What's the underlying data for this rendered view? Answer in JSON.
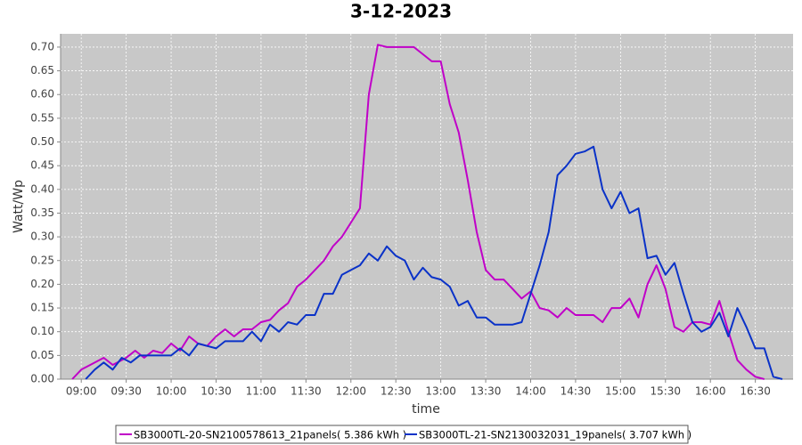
{
  "chart_data": {
    "type": "line",
    "title": "3-12-2023",
    "x_label": "time",
    "y_label": "Watt/Wp",
    "xlim": [
      8.77,
      16.92
    ],
    "ylim": [
      0,
      0.728
    ],
    "grid": true,
    "legend": "bottom",
    "xticks": [
      {
        "value": 9,
        "label": "09:00"
      },
      {
        "value": 9.5,
        "label": "09:30"
      },
      {
        "value": 10,
        "label": "10:00"
      },
      {
        "value": 10.5,
        "label": "10:30"
      },
      {
        "value": 11,
        "label": "11:00"
      },
      {
        "value": 11.5,
        "label": "11:30"
      },
      {
        "value": 12,
        "label": "12:00"
      },
      {
        "value": 12.5,
        "label": "12:30"
      },
      {
        "value": 13,
        "label": "13:00"
      },
      {
        "value": 13.5,
        "label": "13:30"
      },
      {
        "value": 14,
        "label": "14:00"
      },
      {
        "value": 14.5,
        "label": "14:30"
      },
      {
        "value": 15,
        "label": "15:00"
      },
      {
        "value": 15.5,
        "label": "15:30"
      },
      {
        "value": 16,
        "label": "16:00"
      },
      {
        "value": 16.5,
        "label": "16:30"
      }
    ],
    "yticks": [
      {
        "value": 0,
        "label": "0.00"
      },
      {
        "value": 0.05,
        "label": "0.05"
      },
      {
        "value": 0.1,
        "label": "0.10"
      },
      {
        "value": 0.15,
        "label": "0.15"
      },
      {
        "value": 0.2,
        "label": "0.20"
      },
      {
        "value": 0.25,
        "label": "0.25"
      },
      {
        "value": 0.3,
        "label": "0.30"
      },
      {
        "value": 0.35,
        "label": "0.35"
      },
      {
        "value": 0.4,
        "label": "0.40"
      },
      {
        "value": 0.45,
        "label": "0.45"
      },
      {
        "value": 0.5,
        "label": "0.50"
      },
      {
        "value": 0.55,
        "label": "0.55"
      },
      {
        "value": 0.6,
        "label": "0.60"
      },
      {
        "value": 0.65,
        "label": "0.65"
      },
      {
        "value": 0.7,
        "label": "0.70"
      }
    ],
    "series": [
      {
        "name": "SB3000TL-20-SN2100578613_21panels( 5.386 kWh )",
        "color": "#c000c8",
        "x": [
          8.9,
          9.0,
          9.1,
          9.25,
          9.35,
          9.5,
          9.6,
          9.7,
          9.8,
          9.9,
          10.0,
          10.1,
          10.2,
          10.3,
          10.4,
          10.5,
          10.6,
          10.7,
          10.8,
          10.9,
          11.0,
          11.1,
          11.2,
          11.3,
          11.4,
          11.5,
          11.6,
          11.7,
          11.8,
          11.9,
          12.0,
          12.1,
          12.2,
          12.3,
          12.4,
          12.5,
          12.6,
          12.7,
          12.8,
          12.9,
          13.0,
          13.1,
          13.2,
          13.3,
          13.4,
          13.5,
          13.6,
          13.7,
          13.8,
          13.9,
          14.0,
          14.1,
          14.2,
          14.3,
          14.4,
          14.5,
          14.6,
          14.7,
          14.8,
          14.9,
          15.0,
          15.1,
          15.2,
          15.3,
          15.4,
          15.5,
          15.6,
          15.7,
          15.8,
          15.9,
          16.0,
          16.1,
          16.2,
          16.3,
          16.4,
          16.5,
          16.6
        ],
        "values": [
          0,
          0.02,
          0.03,
          0.045,
          0.03,
          0.045,
          0.06,
          0.045,
          0.06,
          0.055,
          0.075,
          0.06,
          0.09,
          0.075,
          0.07,
          0.09,
          0.105,
          0.09,
          0.105,
          0.105,
          0.12,
          0.125,
          0.145,
          0.16,
          0.195,
          0.21,
          0.23,
          0.25,
          0.28,
          0.3,
          0.33,
          0.36,
          0.6,
          0.705,
          0.7,
          0.7,
          0.7,
          0.7,
          0.685,
          0.67,
          0.67,
          0.58,
          0.52,
          0.42,
          0.31,
          0.23,
          0.21,
          0.21,
          0.19,
          0.17,
          0.185,
          0.15,
          0.145,
          0.13,
          0.15,
          0.135,
          0.135,
          0.135,
          0.12,
          0.15,
          0.15,
          0.17,
          0.13,
          0.2,
          0.24,
          0.19,
          0.11,
          0.1,
          0.12,
          0.12,
          0.115,
          0.165,
          0.1,
          0.04,
          0.02,
          0.005,
          0
        ]
      },
      {
        "name": "SB3000TL-21-SN2130032031_19panels( 3.707 kWh )",
        "color": "#0a32c8",
        "x": [
          9.05,
          9.15,
          9.25,
          9.35,
          9.45,
          9.55,
          9.65,
          9.75,
          9.9,
          10.0,
          10.1,
          10.2,
          10.3,
          10.4,
          10.5,
          10.6,
          10.7,
          10.8,
          10.9,
          11.0,
          11.1,
          11.2,
          11.3,
          11.4,
          11.5,
          11.6,
          11.7,
          11.8,
          11.9,
          12.0,
          12.1,
          12.2,
          12.3,
          12.4,
          12.5,
          12.6,
          12.7,
          12.8,
          12.9,
          13.0,
          13.1,
          13.2,
          13.3,
          13.4,
          13.5,
          13.6,
          13.7,
          13.8,
          13.9,
          14.0,
          14.1,
          14.2,
          14.3,
          14.4,
          14.5,
          14.6,
          14.7,
          14.8,
          14.9,
          15.0,
          15.1,
          15.2,
          15.3,
          15.4,
          15.5,
          15.6,
          15.7,
          15.8,
          15.9,
          16.0,
          16.1,
          16.2,
          16.3,
          16.4,
          16.5,
          16.6,
          16.7,
          16.8
        ],
        "values": [
          0,
          0.02,
          0.035,
          0.02,
          0.045,
          0.035,
          0.05,
          0.05,
          0.05,
          0.05,
          0.065,
          0.05,
          0.075,
          0.07,
          0.065,
          0.08,
          0.08,
          0.08,
          0.1,
          0.08,
          0.115,
          0.1,
          0.12,
          0.115,
          0.135,
          0.135,
          0.18,
          0.18,
          0.22,
          0.23,
          0.24,
          0.265,
          0.25,
          0.28,
          0.26,
          0.25,
          0.21,
          0.235,
          0.215,
          0.21,
          0.195,
          0.155,
          0.165,
          0.13,
          0.13,
          0.115,
          0.115,
          0.115,
          0.12,
          0.18,
          0.24,
          0.31,
          0.43,
          0.45,
          0.475,
          0.48,
          0.49,
          0.4,
          0.36,
          0.395,
          0.35,
          0.36,
          0.255,
          0.26,
          0.22,
          0.245,
          0.18,
          0.12,
          0.1,
          0.11,
          0.14,
          0.09,
          0.15,
          0.11,
          0.065,
          0.065,
          0.005,
          0
        ]
      }
    ]
  }
}
